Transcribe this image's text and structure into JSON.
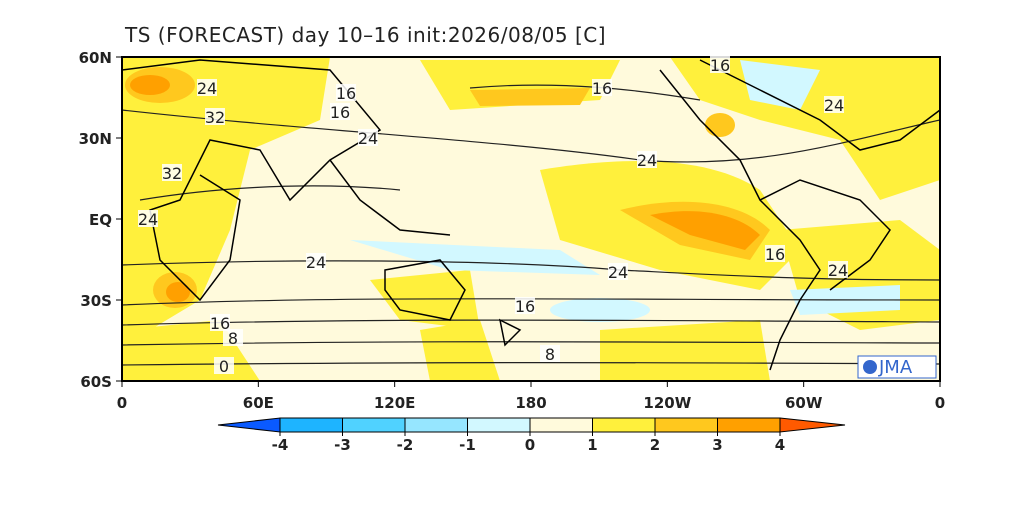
{
  "title": "TS (FORECAST) day 10–16 init:2026/08/05   [C]",
  "lat_labels": [
    "60N",
    "30N",
    "EQ",
    "30S",
    "60S"
  ],
  "lon_labels": [
    "0",
    "60E",
    "120E",
    "180",
    "120W",
    "60W",
    "0"
  ],
  "contour_labels": [
    24,
    32,
    16,
    16,
    24,
    32,
    24,
    16,
    16,
    24,
    24,
    16,
    24,
    24,
    24,
    16,
    16,
    8,
    8,
    0
  ],
  "logo": "JMA",
  "colorbar": {
    "levels": [
      -4,
      -3,
      -2,
      -1,
      0,
      1,
      2,
      3,
      4
    ],
    "colors": [
      "#0a5aff",
      "#1eb4ff",
      "#50d2ff",
      "#96e6ff",
      "#d2f8ff",
      "#fffadc",
      "#fff03c",
      "#ffc81e",
      "#ffa000",
      "#ff5a00"
    ]
  }
}
